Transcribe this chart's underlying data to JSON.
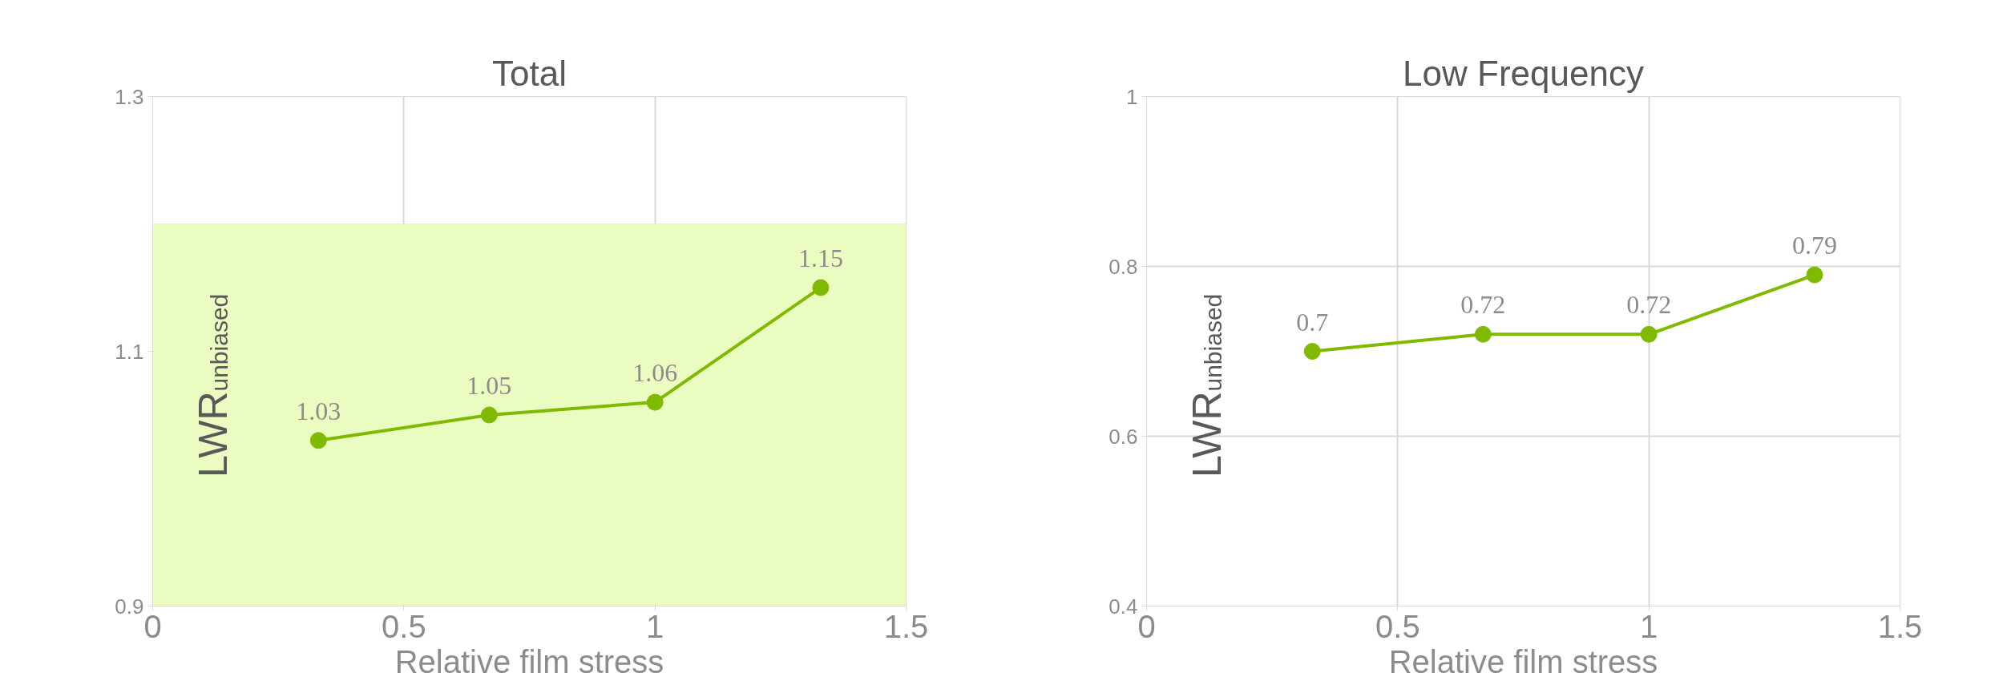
{
  "chart_data": [
    {
      "type": "line",
      "title": "Total",
      "xlabel": "Relative film stress",
      "ylabel": "LWR$_{unbiased}$",
      "x": [
        0.33,
        0.67,
        1,
        1.33
      ],
      "series": [
        {
          "color": "#7fba00",
          "values": [
            1.03,
            1.05,
            1.06,
            1.15
          ]
        }
      ],
      "xlim": [
        0,
        1.5
      ],
      "xticks": [
        0,
        0.5,
        1,
        1.5
      ],
      "ylim": [
        0.9,
        1.3
      ],
      "yticks": [
        0.9,
        1.1,
        1.3
      ],
      "grid": true,
      "marker": "circle",
      "line_style": "solid",
      "data_labels": true,
      "bands": [
        {
          "axis": "y",
          "from": 0.9,
          "to": 1.2,
          "color": "#ebfcc0"
        }
      ]
    },
    {
      "type": "line",
      "title": "Low Frequency",
      "xlabel": "Relative film stress",
      "ylabel": "LWR$_{unbiased}$",
      "x": [
        0.33,
        0.67,
        1,
        1.33
      ],
      "series": [
        {
          "color": "#7fba00",
          "values": [
            0.7,
            0.72,
            0.72,
            0.79
          ]
        }
      ],
      "xlim": [
        0,
        1.5
      ],
      "xticks": [
        0,
        0.5,
        1,
        1.5
      ],
      "ylim": [
        0.4,
        1
      ],
      "yticks": [
        0.4,
        0.6,
        0.8,
        1
      ],
      "grid": true,
      "marker": "circle",
      "line_style": "solid",
      "data_labels": true
    }
  ]
}
